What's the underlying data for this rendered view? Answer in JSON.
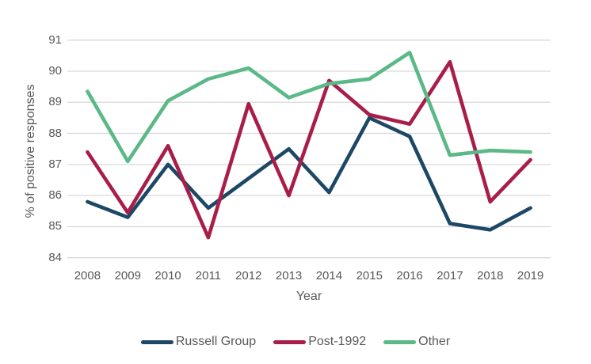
{
  "chart_data": {
    "type": "line",
    "title": "",
    "xlabel": "Year",
    "ylabel": "% of positive responses",
    "categories": [
      "2008",
      "2009",
      "2010",
      "2011",
      "2012",
      "2013",
      "2014",
      "2015",
      "2016",
      "2017",
      "2018",
      "2019"
    ],
    "y_ticks": [
      91,
      90,
      89,
      88,
      87,
      86,
      85,
      84
    ],
    "ylim": [
      84,
      91
    ],
    "grid": "horizontal",
    "legend_position": "bottom",
    "series": [
      {
        "name": "Russell Group",
        "color": "#1c4866",
        "values": [
          85.8,
          85.3,
          87.0,
          85.6,
          86.55,
          87.5,
          86.1,
          88.5,
          87.9,
          85.1,
          84.9,
          85.6
        ]
      },
      {
        "name": "Post-1992",
        "color": "#a81e49",
        "values": [
          87.4,
          85.45,
          87.6,
          84.65,
          88.95,
          86.0,
          89.7,
          88.6,
          88.3,
          90.3,
          85.8,
          87.15
        ]
      },
      {
        "name": "Other",
        "color": "#5bb887",
        "values": [
          89.35,
          87.1,
          89.05,
          89.75,
          90.1,
          89.15,
          89.6,
          89.75,
          90.6,
          87.3,
          87.45,
          87.4
        ]
      }
    ]
  },
  "colors": {
    "gridline": "#d9d9d9",
    "text": "#595959",
    "background": "#ffffff"
  }
}
